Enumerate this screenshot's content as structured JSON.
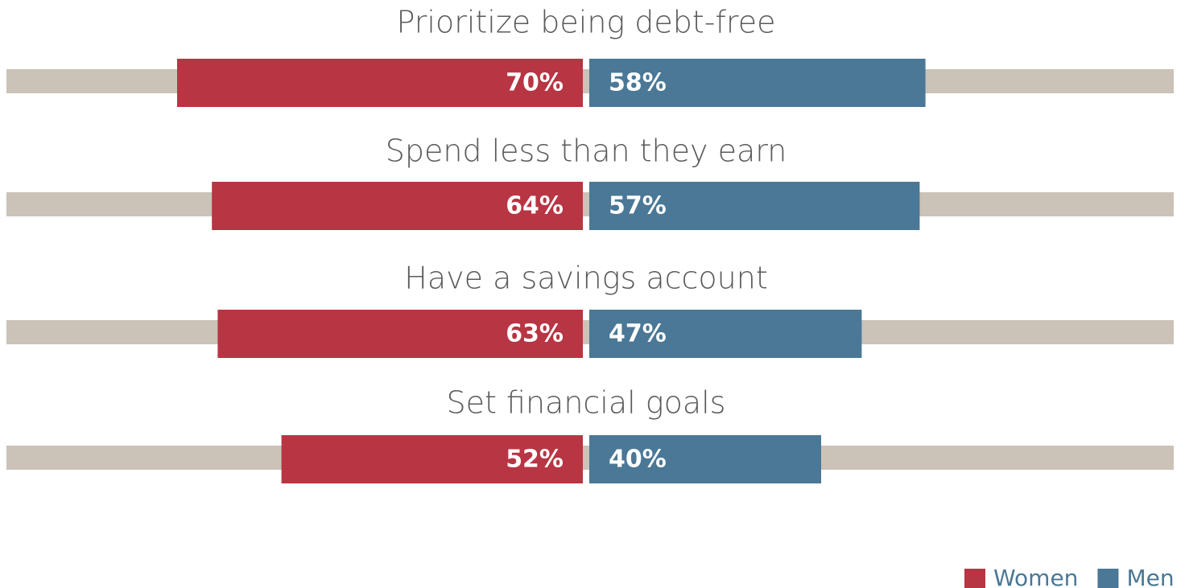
{
  "chart_data": {
    "type": "butterfly",
    "categories": [
      "Prioritize being debt-free",
      "Spend less than they earn",
      "Have a savings account",
      "Set financial goals"
    ],
    "series": [
      {
        "name": "Women",
        "color": "#b83543",
        "values": [
          70,
          64,
          63,
          52
        ],
        "value_labels": [
          "70%",
          "64%",
          "63%",
          "52%"
        ]
      },
      {
        "name": "Men",
        "color": "#4a7896",
        "values": [
          58,
          57,
          47,
          40
        ],
        "value_labels": [
          "58%",
          "57%",
          "47%",
          "40%"
        ]
      }
    ],
    "xlim": [
      0,
      100
    ],
    "track_color": "#cbc2b8"
  }
}
